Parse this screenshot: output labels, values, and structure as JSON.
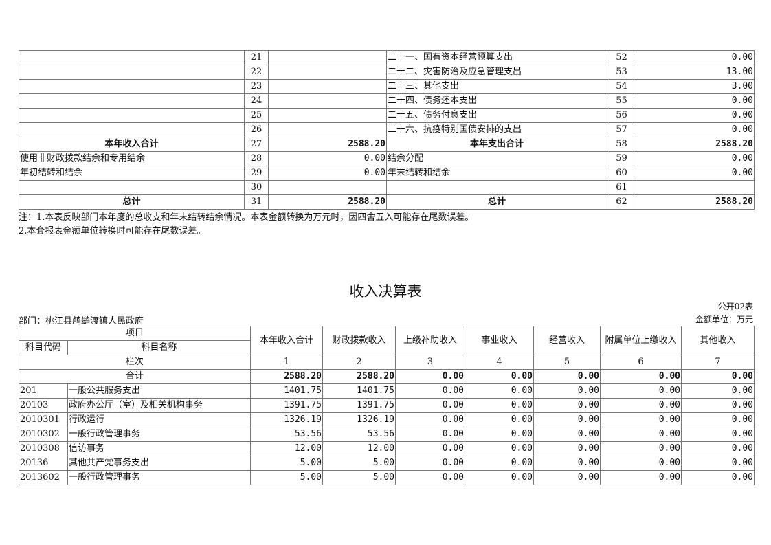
{
  "top_table": {
    "rows": [
      {
        "in_label": "",
        "in_no": "21",
        "in_amt": "",
        "out_label": "二十一、国有资本经营预算支出",
        "out_no": "52",
        "out_amt": "0.00"
      },
      {
        "in_label": "",
        "in_no": "22",
        "in_amt": "",
        "out_label": "二十二、灾害防治及应急管理支出",
        "out_no": "53",
        "out_amt": "13.00"
      },
      {
        "in_label": "",
        "in_no": "23",
        "in_amt": "",
        "out_label": "二十三、其他支出",
        "out_no": "54",
        "out_amt": "3.00"
      },
      {
        "in_label": "",
        "in_no": "24",
        "in_amt": "",
        "out_label": "二十四、债务还本支出",
        "out_no": "55",
        "out_amt": "0.00"
      },
      {
        "in_label": "",
        "in_no": "25",
        "in_amt": "",
        "out_label": "二十五、债务付息支出",
        "out_no": "56",
        "out_amt": "0.00"
      },
      {
        "in_label": "",
        "in_no": "26",
        "in_amt": "",
        "out_label": "二十六、抗疫特别国债安排的支出",
        "out_no": "57",
        "out_amt": "0.00"
      },
      {
        "in_label": "本年收入合计",
        "in_no": "27",
        "in_amt": "2588.20",
        "out_label": "本年支出合计",
        "out_no": "58",
        "out_amt": "2588.20",
        "bold": true
      },
      {
        "in_label": "使用非财政拨款结余和专用结余",
        "in_no": "28",
        "in_amt": "0.00",
        "out_label": "结余分配",
        "out_no": "59",
        "out_amt": "0.00"
      },
      {
        "in_label": "年初结转和结余",
        "in_no": "29",
        "in_amt": "0.00",
        "out_label": "年末结转和结余",
        "out_no": "60",
        "out_amt": "0.00"
      },
      {
        "in_label": "",
        "in_no": "30",
        "in_amt": "",
        "out_label": "",
        "out_no": "61",
        "out_amt": ""
      },
      {
        "in_label": "总计",
        "in_no": "31",
        "in_amt": "2588.20",
        "out_label": "总计",
        "out_no": "62",
        "out_amt": "2588.20",
        "bold": true
      }
    ]
  },
  "notes": [
    "注：1.本表反映部门本年度的总收支和年末结转结余情况。本表金额转换为万元时，因四舍五入可能存在尾数误差。",
    "2.本套报表金额单位转换时可能存在尾数误差。"
  ],
  "income": {
    "title": "收入决算表",
    "form_no": "公开02表",
    "dept": "部门：桃江县鸬鹚渡镇人民政府",
    "unit": "金额单位：万元",
    "h_item": "项目",
    "h_code": "科目代码",
    "h_name": "科目名称",
    "h_col": "栏次",
    "cols": [
      "本年收入合计",
      "财政拨款收入",
      "上级补助收入",
      "事业收入",
      "经营收入",
      "附属单位上缴收入",
      "其他收入"
    ],
    "col_nos": [
      "1",
      "2",
      "3",
      "4",
      "5",
      "6",
      "7"
    ],
    "total_label": "合计",
    "total": [
      "2588.20",
      "2588.20",
      "0.00",
      "0.00",
      "0.00",
      "0.00",
      "0.00"
    ],
    "rows": [
      {
        "code": "201",
        "name": "一般公共服务支出",
        "v": [
          "1401.75",
          "1401.75",
          "0.00",
          "0.00",
          "0.00",
          "0.00",
          "0.00"
        ]
      },
      {
        "code": "20103",
        "name": "政府办公厅（室）及相关机构事务",
        "v": [
          "1391.75",
          "1391.75",
          "0.00",
          "0.00",
          "0.00",
          "0.00",
          "0.00"
        ]
      },
      {
        "code": "2010301",
        "name": "行政运行",
        "v": [
          "1326.19",
          "1326.19",
          "0.00",
          "0.00",
          "0.00",
          "0.00",
          "0.00"
        ]
      },
      {
        "code": "2010302",
        "name": "一般行政管理事务",
        "v": [
          "53.56",
          "53.56",
          "0.00",
          "0.00",
          "0.00",
          "0.00",
          "0.00"
        ]
      },
      {
        "code": "2010308",
        "name": "信访事务",
        "v": [
          "12.00",
          "12.00",
          "0.00",
          "0.00",
          "0.00",
          "0.00",
          "0.00"
        ]
      },
      {
        "code": "20136",
        "name": "其他共产党事务支出",
        "v": [
          "5.00",
          "5.00",
          "0.00",
          "0.00",
          "0.00",
          "0.00",
          "0.00"
        ]
      },
      {
        "code": "2013602",
        "name": "一般行政管理事务",
        "v": [
          "5.00",
          "5.00",
          "0.00",
          "0.00",
          "0.00",
          "0.00",
          "0.00"
        ]
      }
    ]
  }
}
